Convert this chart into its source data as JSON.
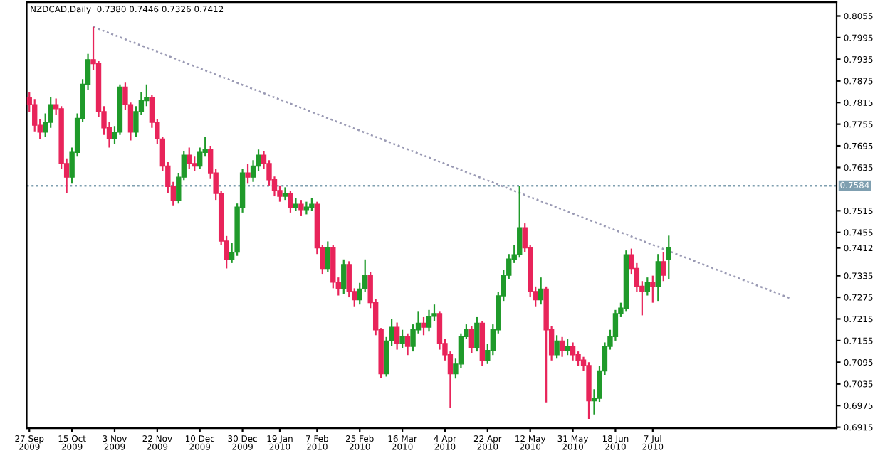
{
  "chart_data": {
    "type": "candlestick",
    "title": "NZDCAD,Daily  0.7380 0.7446 0.7326 0.7412",
    "categories": [
      "27 Sep 2009",
      null,
      null,
      null,
      null,
      null,
      null,
      null,
      "15 Oct 2009",
      null,
      null,
      null,
      null,
      null,
      null,
      null,
      "3 Nov 2009",
      null,
      null,
      null,
      null,
      null,
      null,
      null,
      "22 Nov 2009",
      null,
      null,
      null,
      null,
      null,
      null,
      null,
      "10 Dec 2009",
      null,
      null,
      null,
      null,
      null,
      null,
      null,
      "30 Dec 2009",
      null,
      null,
      null,
      null,
      null,
      null,
      "19 Jan 2010",
      null,
      null,
      null,
      null,
      null,
      null,
      "7 Feb 2010",
      null,
      null,
      null,
      null,
      null,
      null,
      null,
      "25 Feb 2010",
      null,
      null,
      null,
      null,
      null,
      null,
      null,
      "16 Mar 2010",
      null,
      null,
      null,
      null,
      null,
      null,
      null,
      "4 Apr 2010",
      null,
      null,
      null,
      null,
      null,
      null,
      null,
      "22 Apr 2010",
      null,
      null,
      null,
      null,
      null,
      null,
      null,
      "12 May 2010",
      null,
      null,
      null,
      null,
      null,
      null,
      null,
      "31 May 2010",
      null,
      null,
      null,
      null,
      null,
      null,
      null,
      "18 Jun 2010",
      null,
      null,
      null,
      null,
      null,
      null,
      "7 Jul 2010",
      null,
      null,
      null,
      null,
      null,
      null,
      null,
      null,
      null,
      null,
      null,
      null,
      null,
      null,
      null,
      null,
      null,
      null,
      null,
      null,
      null,
      null,
      null,
      null,
      null,
      null,
      null,
      null,
      null,
      null,
      null,
      null,
      null,
      null
    ],
    "ylim": [
      0.6912,
      0.8093
    ],
    "yticks": [
      0.6915,
      0.6975,
      0.7035,
      0.7095,
      0.7155,
      0.7215,
      0.7275,
      0.7335,
      0.7412,
      0.7455,
      0.7515,
      0.7635,
      0.7695,
      0.7755,
      0.7815,
      0.7875,
      0.7935,
      0.7995,
      0.8055
    ],
    "ref_lines": [
      {
        "axis": "y",
        "value": 0.7584,
        "label": "0.7584",
        "color": "#7f9fb0",
        "line_style": "dotted"
      }
    ],
    "series": [
      {
        "ohlc": [
          [
            0.7828,
            0.7845,
            0.779,
            0.7809
          ],
          [
            0.7809,
            0.7825,
            0.7735,
            0.7752
          ],
          [
            0.7752,
            0.777,
            0.7715,
            0.7733
          ],
          [
            0.7733,
            0.7785,
            0.772,
            0.776
          ],
          [
            0.776,
            0.783,
            0.7745,
            0.7809
          ],
          [
            0.7809,
            0.7826,
            0.778,
            0.7798
          ],
          [
            0.7798,
            0.7805,
            0.763,
            0.7646
          ],
          [
            0.7646,
            0.766,
            0.7565,
            0.7608
          ],
          [
            0.7608,
            0.769,
            0.759,
            0.7677
          ],
          [
            0.7677,
            0.7785,
            0.7665,
            0.7771
          ],
          [
            0.7771,
            0.788,
            0.776,
            0.7866
          ],
          [
            0.7866,
            0.795,
            0.785,
            0.7934
          ],
          [
            0.7934,
            0.8025,
            0.7905,
            0.7923
          ],
          [
            0.7923,
            0.793,
            0.7775,
            0.779
          ],
          [
            0.779,
            0.7805,
            0.7725,
            0.7745
          ],
          [
            0.7745,
            0.776,
            0.769,
            0.7714
          ],
          [
            0.7714,
            0.775,
            0.77,
            0.7733
          ],
          [
            0.7733,
            0.7865,
            0.7725,
            0.7858
          ],
          [
            0.7858,
            0.787,
            0.7795,
            0.7809
          ],
          [
            0.7809,
            0.7815,
            0.771,
            0.7733
          ],
          [
            0.7733,
            0.7805,
            0.772,
            0.779
          ],
          [
            0.779,
            0.7845,
            0.778,
            0.782
          ],
          [
            0.782,
            0.7865,
            0.7805,
            0.7828
          ],
          [
            0.7828,
            0.7835,
            0.7745,
            0.776
          ],
          [
            0.776,
            0.777,
            0.77,
            0.7714
          ],
          [
            0.7714,
            0.772,
            0.7625,
            0.7639
          ],
          [
            0.7639,
            0.765,
            0.7565,
            0.7582
          ],
          [
            0.7582,
            0.7595,
            0.753,
            0.7544
          ],
          [
            0.7544,
            0.762,
            0.7535,
            0.7608
          ],
          [
            0.7608,
            0.768,
            0.76,
            0.7669
          ],
          [
            0.7669,
            0.769,
            0.763,
            0.7646
          ],
          [
            0.7646,
            0.7665,
            0.7625,
            0.7639
          ],
          [
            0.7639,
            0.769,
            0.763,
            0.7677
          ],
          [
            0.7677,
            0.772,
            0.7665,
            0.7684
          ],
          [
            0.7684,
            0.7695,
            0.7605,
            0.762
          ],
          [
            0.762,
            0.763,
            0.7545,
            0.7563
          ],
          [
            0.7563,
            0.757,
            0.742,
            0.7431
          ],
          [
            0.7431,
            0.7445,
            0.7355,
            0.7381
          ],
          [
            0.7381,
            0.7425,
            0.737,
            0.74
          ],
          [
            0.74,
            0.7535,
            0.739,
            0.7525
          ],
          [
            0.7525,
            0.763,
            0.751,
            0.762
          ],
          [
            0.762,
            0.7645,
            0.759,
            0.7608
          ],
          [
            0.7608,
            0.7655,
            0.7595,
            0.7639
          ],
          [
            0.7639,
            0.7685,
            0.7625,
            0.7669
          ],
          [
            0.7669,
            0.768,
            0.763,
            0.7646
          ],
          [
            0.7646,
            0.7655,
            0.7585,
            0.7601
          ],
          [
            0.7601,
            0.761,
            0.7555,
            0.7571
          ],
          [
            0.7571,
            0.7585,
            0.754,
            0.7555
          ],
          [
            0.7555,
            0.758,
            0.7545,
            0.7563
          ],
          [
            0.7563,
            0.757,
            0.751,
            0.7525
          ],
          [
            0.7525,
            0.755,
            0.7515,
            0.7533
          ],
          [
            0.7533,
            0.7545,
            0.75,
            0.7518
          ],
          [
            0.7518,
            0.754,
            0.7505,
            0.7525
          ],
          [
            0.7525,
            0.755,
            0.7515,
            0.7533
          ],
          [
            0.7533,
            0.754,
            0.7395,
            0.7412
          ],
          [
            0.7412,
            0.742,
            0.734,
            0.7355
          ],
          [
            0.7355,
            0.743,
            0.7345,
            0.7412
          ],
          [
            0.7412,
            0.742,
            0.73,
            0.7317
          ],
          [
            0.7317,
            0.733,
            0.728,
            0.7298
          ],
          [
            0.7298,
            0.738,
            0.7285,
            0.7366
          ],
          [
            0.7366,
            0.7375,
            0.7275,
            0.7291
          ],
          [
            0.7291,
            0.73,
            0.725,
            0.7268
          ],
          [
            0.7268,
            0.7315,
            0.7255,
            0.7298
          ],
          [
            0.7298,
            0.738,
            0.729,
            0.7336
          ],
          [
            0.7336,
            0.7345,
            0.7245,
            0.726
          ],
          [
            0.726,
            0.727,
            0.717,
            0.7185
          ],
          [
            0.7185,
            0.719,
            0.7052,
            0.7063
          ],
          [
            0.7063,
            0.7165,
            0.7055,
            0.7154
          ],
          [
            0.7154,
            0.7215,
            0.714,
            0.7192
          ],
          [
            0.7192,
            0.7205,
            0.713,
            0.7147
          ],
          [
            0.7147,
            0.7185,
            0.7135,
            0.7166
          ],
          [
            0.7166,
            0.7175,
            0.7115,
            0.7139
          ],
          [
            0.7139,
            0.72,
            0.7125,
            0.7185
          ],
          [
            0.7185,
            0.7235,
            0.7175,
            0.7203
          ],
          [
            0.7203,
            0.722,
            0.717,
            0.7192
          ],
          [
            0.7192,
            0.724,
            0.718,
            0.7222
          ],
          [
            0.7222,
            0.7255,
            0.721,
            0.723
          ],
          [
            0.723,
            0.7235,
            0.713,
            0.7147
          ],
          [
            0.7147,
            0.716,
            0.71,
            0.7116
          ],
          [
            0.7116,
            0.7125,
            0.6969,
            0.7063
          ],
          [
            0.7063,
            0.7105,
            0.705,
            0.709
          ],
          [
            0.709,
            0.7175,
            0.708,
            0.7166
          ],
          [
            0.7166,
            0.72,
            0.716,
            0.7185
          ],
          [
            0.7185,
            0.7195,
            0.712,
            0.7135
          ],
          [
            0.7135,
            0.722,
            0.7125,
            0.7203
          ],
          [
            0.7203,
            0.721,
            0.7085,
            0.7101
          ],
          [
            0.7101,
            0.7145,
            0.709,
            0.7128
          ],
          [
            0.7128,
            0.72,
            0.7115,
            0.7185
          ],
          [
            0.7185,
            0.729,
            0.7175,
            0.7279
          ],
          [
            0.7279,
            0.735,
            0.7265,
            0.7336
          ],
          [
            0.7336,
            0.7395,
            0.7325,
            0.7381
          ],
          [
            0.7381,
            0.742,
            0.737,
            0.7393
          ],
          [
            0.7393,
            0.7584,
            0.7385,
            0.7468
          ],
          [
            0.7468,
            0.748,
            0.74,
            0.7412
          ],
          [
            0.7412,
            0.742,
            0.7275,
            0.7291
          ],
          [
            0.7291,
            0.7305,
            0.725,
            0.7268
          ],
          [
            0.7268,
            0.733,
            0.7255,
            0.7298
          ],
          [
            0.7298,
            0.7305,
            0.6984,
            0.7185
          ],
          [
            0.7185,
            0.7195,
            0.71,
            0.7116
          ],
          [
            0.7116,
            0.717,
            0.7105,
            0.7154
          ],
          [
            0.7154,
            0.7165,
            0.711,
            0.7128
          ],
          [
            0.7128,
            0.716,
            0.7115,
            0.7139
          ],
          [
            0.7139,
            0.715,
            0.71,
            0.7116
          ],
          [
            0.7116,
            0.7125,
            0.7085,
            0.7101
          ],
          [
            0.7101,
            0.711,
            0.707,
            0.7086
          ],
          [
            0.7086,
            0.7095,
            0.6938,
            0.6988
          ],
          [
            0.6988,
            0.702,
            0.695,
            0.6995
          ],
          [
            0.6995,
            0.7085,
            0.6985,
            0.7071
          ],
          [
            0.7071,
            0.715,
            0.706,
            0.7139
          ],
          [
            0.7139,
            0.7185,
            0.713,
            0.7166
          ],
          [
            0.7166,
            0.724,
            0.7155,
            0.723
          ],
          [
            0.723,
            0.726,
            0.722,
            0.7245
          ],
          [
            0.7245,
            0.7405,
            0.7235,
            0.7393
          ],
          [
            0.7393,
            0.741,
            0.734,
            0.7355
          ],
          [
            0.7355,
            0.737,
            0.729,
            0.7306
          ],
          [
            0.7306,
            0.732,
            0.7225,
            0.7291
          ],
          [
            0.7291,
            0.733,
            0.728,
            0.7317
          ],
          [
            0.7317,
            0.7335,
            0.726,
            0.7306
          ],
          [
            0.7306,
            0.7395,
            0.7265,
            0.7374
          ],
          [
            0.7374,
            0.74,
            0.732,
            0.7336
          ],
          [
            0.738,
            0.7446,
            0.7326,
            0.7412
          ],
          null,
          null,
          null,
          null,
          null,
          null,
          null,
          null,
          null,
          null,
          null,
          null,
          null,
          null,
          null,
          null,
          null,
          null,
          null,
          null,
          null,
          null,
          null,
          null,
          null,
          null,
          null,
          null,
          null,
          null,
          null
        ]
      },
      {
        "type": "line",
        "color": "#9a9ab4",
        "line_style": "dotted",
        "values": [
          null,
          null,
          null,
          null,
          null,
          null,
          null,
          null,
          null,
          null,
          null,
          null,
          0.8025,
          null,
          null,
          null,
          null,
          null,
          null,
          null,
          null,
          null,
          null,
          null,
          null,
          null,
          null,
          null,
          null,
          null,
          null,
          null,
          null,
          null,
          null,
          null,
          null,
          null,
          null,
          null,
          null,
          null,
          null,
          null,
          null,
          null,
          null,
          null,
          null,
          null,
          null,
          null,
          null,
          null,
          null,
          null,
          null,
          null,
          null,
          null,
          null,
          null,
          null,
          null,
          null,
          null,
          null,
          null,
          null,
          null,
          null,
          null,
          null,
          null,
          null,
          null,
          null,
          null,
          null,
          null,
          null,
          null,
          null,
          null,
          null,
          null,
          null,
          null,
          null,
          null,
          null,
          null,
          null,
          null,
          null,
          null,
          null,
          null,
          null,
          null,
          null,
          null,
          null,
          null,
          null,
          null,
          null,
          null,
          null,
          null,
          null,
          null,
          null,
          null,
          null,
          null,
          null,
          null,
          null,
          null,
          null,
          null,
          null,
          null,
          null,
          null,
          null,
          null,
          null,
          null,
          null,
          null,
          null,
          null,
          null,
          null,
          null,
          null,
          null,
          null,
          null,
          null,
          null,
          0.7271,
          null,
          null,
          null,
          null,
          null,
          null,
          null,
          null
        ]
      }
    ]
  }
}
